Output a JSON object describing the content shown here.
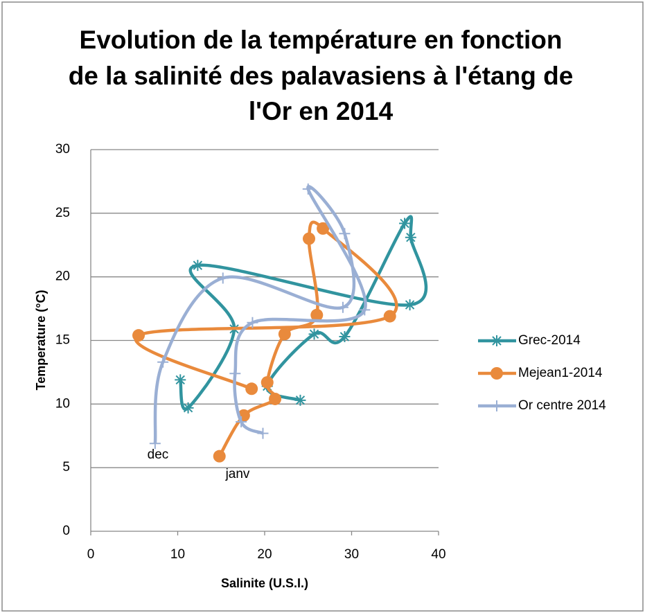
{
  "chart_data": {
    "type": "scatter-smooth",
    "title": [
      "Evolution de la température en fonction",
      "de la salinité des palavasiens à l'étang de",
      "l'Or en 2014"
    ],
    "x_label": "Salinite (U.S.I.)",
    "y_label": "Temperature (°C)",
    "xlim": [
      0,
      40
    ],
    "xticks": [
      0,
      10,
      20,
      30,
      40
    ],
    "ylim": [
      0,
      30
    ],
    "yticks": [
      0,
      5,
      10,
      15,
      20,
      25,
      30
    ],
    "grid": true,
    "legend": "right",
    "annotations": [
      "dec",
      "janv"
    ],
    "series": [
      {
        "name": "Grec-2014",
        "color": "#31949f",
        "marker": "star",
        "x": [
          24.1,
          20.3,
          25.7,
          29.2,
          36.1,
          36.8,
          36.7,
          12.3,
          16.5,
          11.2,
          10.3
        ],
        "values": [
          10.3,
          11.4,
          15.5,
          15.3,
          24.2,
          23.1,
          17.8,
          20.9,
          15.9,
          9.7,
          11.9
        ]
      },
      {
        "name": "Mejean1-2014",
        "color": "#e98a3c",
        "marker": "circle",
        "x": [
          14.8,
          17.6,
          21.2,
          20.3,
          22.3,
          26.0,
          25.1,
          26.7,
          34.4,
          5.5,
          18.5
        ],
        "values": [
          5.9,
          9.1,
          10.4,
          11.7,
          15.5,
          17.0,
          23.0,
          23.8,
          16.9,
          15.4,
          11.2
        ]
      },
      {
        "name": "Or centre 2014",
        "color": "#9aafd4",
        "marker": "plus",
        "x": [
          7.4,
          8.3,
          15.2,
          29.0,
          29.2,
          25.0,
          31.5,
          18.6,
          16.6,
          17.3,
          19.8
        ],
        "values": [
          6.9,
          13.3,
          19.9,
          17.6,
          23.4,
          26.9,
          17.4,
          16.4,
          12.4,
          8.6,
          7.7
        ]
      }
    ]
  }
}
